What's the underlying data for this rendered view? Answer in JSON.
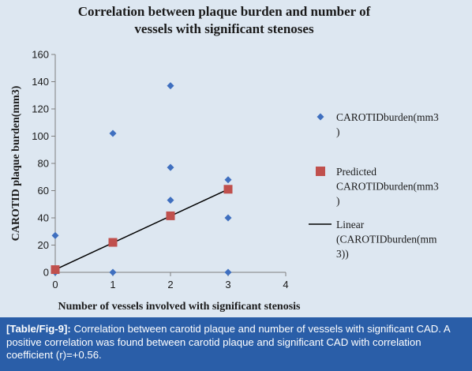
{
  "chart_data": {
    "type": "scatter",
    "title_lines": [
      "Correlation  between plaque burden and number of",
      "vessels with significant stenoses"
    ],
    "xlabel": "Number of vessels involved with significant stenosis",
    "ylabel": "CAROTID plaque burden(mm3)",
    "xlim": [
      0,
      4
    ],
    "ylim": [
      0,
      160
    ],
    "xticks": [
      0,
      1,
      2,
      3,
      4
    ],
    "yticks": [
      0,
      20,
      40,
      60,
      80,
      100,
      120,
      140,
      160
    ],
    "grid": false,
    "legend_position": "right",
    "series": [
      {
        "name_lines": [
          "CAROTIDburden(mm3",
          ")"
        ],
        "marker": "diamond",
        "color": "#3f6fbf",
        "points": [
          [
            0,
            27
          ],
          [
            0,
            0
          ],
          [
            1,
            102
          ],
          [
            1,
            0
          ],
          [
            2,
            137
          ],
          [
            2,
            77
          ],
          [
            2,
            53
          ],
          [
            3,
            68
          ],
          [
            3,
            40
          ],
          [
            3,
            0
          ]
        ]
      },
      {
        "name_lines": [
          "Predicted",
          "CAROTIDburden(mm3",
          ")"
        ],
        "marker": "square",
        "color": "#c0504d",
        "points": [
          [
            0,
            2
          ],
          [
            1,
            22
          ],
          [
            2,
            41.5
          ],
          [
            3,
            61
          ]
        ]
      },
      {
        "name_lines": [
          "Linear",
          "(CAROTIDburden(mm",
          "3))"
        ],
        "marker": "line",
        "color": "#000000",
        "points": [
          [
            0,
            2
          ],
          [
            3,
            61
          ]
        ]
      }
    ]
  },
  "caption": {
    "label": "[Table/Fig-9]:",
    "text": " Correlation between carotid plaque and number of vessels with significant CAD. A positive correlation was found between carotid plaque and significant CAD with correlation coefficient (r)=+0.56."
  }
}
